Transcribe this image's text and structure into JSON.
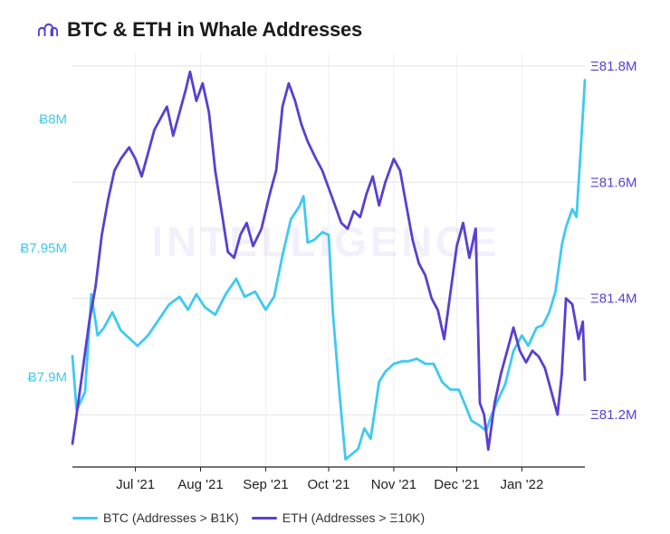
{
  "title": "BTC & ETH in Whale Addresses",
  "watermark": "INTELLIGENCE",
  "colors": {
    "btc": "#3fc9f2",
    "eth": "#5b3fd0",
    "brand": "#5b3fd0",
    "grid": "#e3e3e3",
    "axis": "#222222"
  },
  "chart_data": {
    "type": "line",
    "title": "BTC & ETH in Whale Addresses",
    "x_axis": {
      "start": "2021-06-01",
      "end": "2022-01-31",
      "ticks": [
        {
          "date": "2021-07-01",
          "label": "Jul '21"
        },
        {
          "date": "2021-08-01",
          "label": "Aug '21"
        },
        {
          "date": "2021-09-01",
          "label": "Sep '21"
        },
        {
          "date": "2021-10-01",
          "label": "Oct '21"
        },
        {
          "date": "2021-11-01",
          "label": "Nov '21"
        },
        {
          "date": "2021-12-01",
          "label": "Dec '21"
        },
        {
          "date": "2022-01-01",
          "label": "Jan '22"
        }
      ]
    },
    "y_left": {
      "min": 7.865,
      "max": 8.025,
      "unit": "M",
      "ticks": [
        {
          "value": 7.9,
          "label": "Ƀ7.9M"
        },
        {
          "value": 7.95,
          "label": "Ƀ7.95M"
        },
        {
          "value": 8.0,
          "label": "Ƀ8M"
        }
      ]
    },
    "y_right": {
      "min": 81.11,
      "max": 81.82,
      "unit": "M",
      "ticks": [
        {
          "value": 81.2,
          "label": "Ξ81.2M"
        },
        {
          "value": 81.4,
          "label": "Ξ81.4M"
        },
        {
          "value": 81.6,
          "label": "Ξ81.6M"
        },
        {
          "value": 81.8,
          "label": "Ξ81.8M"
        }
      ]
    },
    "grid": true,
    "legend_position": "bottom",
    "series": [
      {
        "name": "BTC (Addresses > Ƀ1K)",
        "axis": "left",
        "color": "#3fc9f2",
        "points": [
          [
            "2021-06-01",
            7.908
          ],
          [
            "2021-06-03",
            7.887
          ],
          [
            "2021-06-07",
            7.894
          ],
          [
            "2021-06-10",
            7.932
          ],
          [
            "2021-06-13",
            7.916
          ],
          [
            "2021-06-16",
            7.919
          ],
          [
            "2021-06-20",
            7.925
          ],
          [
            "2021-06-24",
            7.918
          ],
          [
            "2021-06-28",
            7.915
          ],
          [
            "2021-07-02",
            7.912
          ],
          [
            "2021-07-07",
            7.916
          ],
          [
            "2021-07-12",
            7.922
          ],
          [
            "2021-07-17",
            7.928
          ],
          [
            "2021-07-22",
            7.931
          ],
          [
            "2021-07-26",
            7.926
          ],
          [
            "2021-07-30",
            7.932
          ],
          [
            "2021-08-03",
            7.927
          ],
          [
            "2021-08-08",
            7.924
          ],
          [
            "2021-08-13",
            7.932
          ],
          [
            "2021-08-18",
            7.938
          ],
          [
            "2021-08-22",
            7.931
          ],
          [
            "2021-08-27",
            7.933
          ],
          [
            "2021-09-01",
            7.926
          ],
          [
            "2021-09-05",
            7.931
          ],
          [
            "2021-09-09",
            7.947
          ],
          [
            "2021-09-13",
            7.961
          ],
          [
            "2021-09-17",
            7.966
          ],
          [
            "2021-09-19",
            7.97
          ],
          [
            "2021-09-21",
            7.952
          ],
          [
            "2021-09-24",
            7.953
          ],
          [
            "2021-09-28",
            7.956
          ],
          [
            "2021-10-01",
            7.955
          ],
          [
            "2021-10-03",
            7.925
          ],
          [
            "2021-10-06",
            7.895
          ],
          [
            "2021-10-09",
            7.868
          ],
          [
            "2021-10-12",
            7.87
          ],
          [
            "2021-10-15",
            7.872
          ],
          [
            "2021-10-18",
            7.88
          ],
          [
            "2021-10-21",
            7.876
          ],
          [
            "2021-10-25",
            7.898
          ],
          [
            "2021-10-28",
            7.902
          ],
          [
            "2021-11-01",
            7.905
          ],
          [
            "2021-11-05",
            7.906
          ],
          [
            "2021-11-08",
            7.906
          ],
          [
            "2021-11-12",
            7.907
          ],
          [
            "2021-11-16",
            7.905
          ],
          [
            "2021-11-20",
            7.905
          ],
          [
            "2021-11-24",
            7.898
          ],
          [
            "2021-11-28",
            7.895
          ],
          [
            "2021-12-02",
            7.895
          ],
          [
            "2021-12-05",
            7.889
          ],
          [
            "2021-12-08",
            7.883
          ],
          [
            "2021-12-12",
            7.881
          ],
          [
            "2021-12-15",
            7.879
          ],
          [
            "2021-12-17",
            7.884
          ],
          [
            "2021-12-20",
            7.89
          ],
          [
            "2021-12-24",
            7.897
          ],
          [
            "2021-12-28",
            7.91
          ],
          [
            "2022-01-01",
            7.916
          ],
          [
            "2022-01-04",
            7.912
          ],
          [
            "2022-01-08",
            7.919
          ],
          [
            "2022-01-11",
            7.92
          ],
          [
            "2022-01-14",
            7.925
          ],
          [
            "2022-01-17",
            7.933
          ],
          [
            "2022-01-20",
            7.951
          ],
          [
            "2022-01-22",
            7.958
          ],
          [
            "2022-01-25",
            7.965
          ],
          [
            "2022-01-27",
            7.962
          ],
          [
            "2022-01-29",
            7.988
          ],
          [
            "2022-01-31",
            8.015
          ]
        ]
      },
      {
        "name": "ETH (Addresses > Ξ10K)",
        "axis": "right",
        "color": "#5b3fd0",
        "points": [
          [
            "2021-06-01",
            81.15
          ],
          [
            "2021-06-03",
            81.2
          ],
          [
            "2021-06-06",
            81.28
          ],
          [
            "2021-06-09",
            81.36
          ],
          [
            "2021-06-12",
            81.42
          ],
          [
            "2021-06-15",
            81.51
          ],
          [
            "2021-06-18",
            81.57
          ],
          [
            "2021-06-21",
            81.62
          ],
          [
            "2021-06-24",
            81.64
          ],
          [
            "2021-06-28",
            81.66
          ],
          [
            "2021-07-01",
            81.64
          ],
          [
            "2021-07-04",
            81.61
          ],
          [
            "2021-07-07",
            81.65
          ],
          [
            "2021-07-10",
            81.69
          ],
          [
            "2021-07-13",
            81.71
          ],
          [
            "2021-07-16",
            81.73
          ],
          [
            "2021-07-19",
            81.68
          ],
          [
            "2021-07-22",
            81.72
          ],
          [
            "2021-07-25",
            81.76
          ],
          [
            "2021-07-27",
            81.79
          ],
          [
            "2021-07-30",
            81.74
          ],
          [
            "2021-08-02",
            81.77
          ],
          [
            "2021-08-05",
            81.72
          ],
          [
            "2021-08-08",
            81.62
          ],
          [
            "2021-08-11",
            81.55
          ],
          [
            "2021-08-14",
            81.48
          ],
          [
            "2021-08-17",
            81.47
          ],
          [
            "2021-08-20",
            81.51
          ],
          [
            "2021-08-23",
            81.53
          ],
          [
            "2021-08-26",
            81.49
          ],
          [
            "2021-08-30",
            81.52
          ],
          [
            "2021-09-03",
            81.58
          ],
          [
            "2021-09-06",
            81.62
          ],
          [
            "2021-09-09",
            81.73
          ],
          [
            "2021-09-12",
            81.77
          ],
          [
            "2021-09-15",
            81.74
          ],
          [
            "2021-09-18",
            81.7
          ],
          [
            "2021-09-21",
            81.67
          ],
          [
            "2021-09-25",
            81.64
          ],
          [
            "2021-09-28",
            81.62
          ],
          [
            "2021-10-01",
            81.59
          ],
          [
            "2021-10-04",
            81.56
          ],
          [
            "2021-10-07",
            81.53
          ],
          [
            "2021-10-10",
            81.52
          ],
          [
            "2021-10-13",
            81.55
          ],
          [
            "2021-10-16",
            81.54
          ],
          [
            "2021-10-19",
            81.58
          ],
          [
            "2021-10-22",
            81.61
          ],
          [
            "2021-10-25",
            81.56
          ],
          [
            "2021-10-28",
            81.6
          ],
          [
            "2021-11-01",
            81.64
          ],
          [
            "2021-11-04",
            81.62
          ],
          [
            "2021-11-07",
            81.56
          ],
          [
            "2021-11-10",
            81.5
          ],
          [
            "2021-11-13",
            81.46
          ],
          [
            "2021-11-16",
            81.44
          ],
          [
            "2021-11-19",
            81.4
          ],
          [
            "2021-11-22",
            81.38
          ],
          [
            "2021-11-25",
            81.33
          ],
          [
            "2021-11-28",
            81.41
          ],
          [
            "2021-12-01",
            81.49
          ],
          [
            "2021-12-04",
            81.53
          ],
          [
            "2021-12-07",
            81.47
          ],
          [
            "2021-12-10",
            81.52
          ],
          [
            "2021-12-12",
            81.22
          ],
          [
            "2021-12-14",
            81.2
          ],
          [
            "2021-12-16",
            81.14
          ],
          [
            "2021-12-19",
            81.22
          ],
          [
            "2021-12-22",
            81.27
          ],
          [
            "2021-12-25",
            81.31
          ],
          [
            "2021-12-28",
            81.35
          ],
          [
            "2021-12-31",
            81.31
          ],
          [
            "2022-01-03",
            81.29
          ],
          [
            "2022-01-06",
            81.31
          ],
          [
            "2022-01-09",
            81.3
          ],
          [
            "2022-01-12",
            81.28
          ],
          [
            "2022-01-15",
            81.24
          ],
          [
            "2022-01-18",
            81.2
          ],
          [
            "2022-01-20",
            81.27
          ],
          [
            "2022-01-22",
            81.4
          ],
          [
            "2022-01-25",
            81.39
          ],
          [
            "2022-01-28",
            81.33
          ],
          [
            "2022-01-30",
            81.36
          ],
          [
            "2022-01-31",
            81.26
          ]
        ]
      }
    ]
  }
}
